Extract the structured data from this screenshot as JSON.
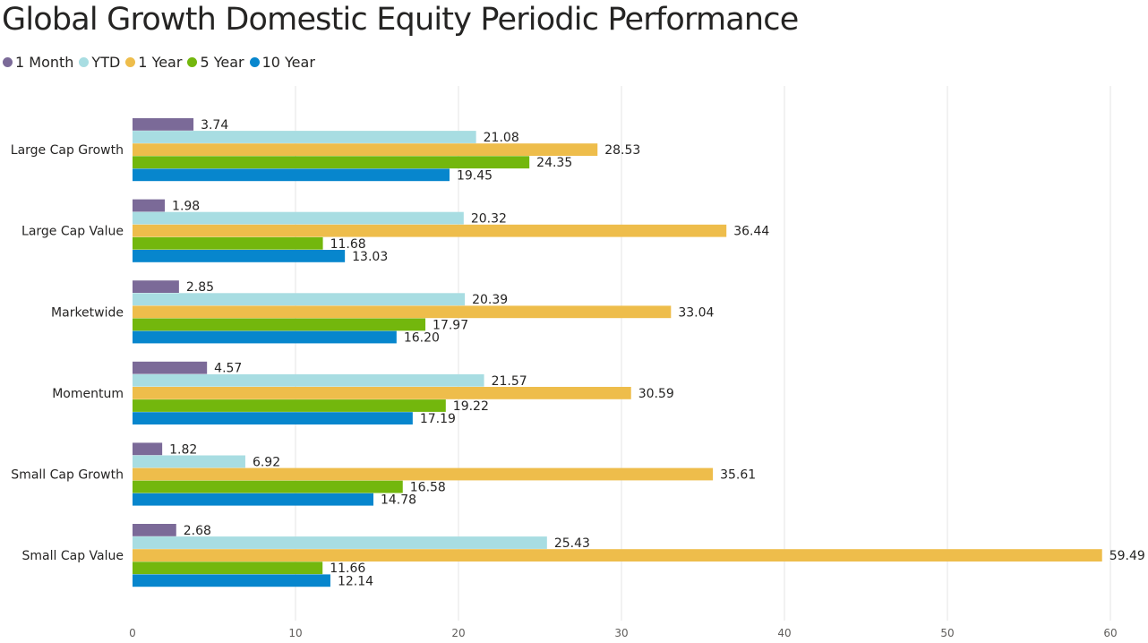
{
  "colors": {
    "1 Month": "#7b6a98",
    "YTD": "#a8dde2",
    "1 Year": "#eebd4b",
    "5 Year": "#73b70d",
    "10 Year": "#0786cd",
    "grid": "#e9e9e9",
    "text": "#252423"
  },
  "chart_data": {
    "type": "bar",
    "orientation": "horizontal",
    "title": "Global Growth Domestic Equity Periodic Performance",
    "categories": [
      "Large Cap Growth",
      "Large Cap Value",
      "Marketwide",
      "Momentum",
      "Small Cap Growth",
      "Small Cap Value"
    ],
    "series": [
      {
        "name": "1 Month",
        "values": [
          3.74,
          1.98,
          2.85,
          4.57,
          1.82,
          2.68
        ]
      },
      {
        "name": "YTD",
        "values": [
          21.08,
          20.32,
          20.39,
          21.57,
          6.92,
          25.43
        ]
      },
      {
        "name": "1 Year",
        "values": [
          28.53,
          36.44,
          33.04,
          30.59,
          35.61,
          59.49
        ]
      },
      {
        "name": "5 Year",
        "values": [
          24.35,
          11.68,
          17.97,
          19.22,
          16.58,
          11.66
        ]
      },
      {
        "name": "10 Year",
        "values": [
          19.45,
          13.03,
          16.2,
          17.19,
          14.78,
          12.14
        ]
      }
    ],
    "xlim": [
      0,
      60
    ],
    "xticks": [
      "0",
      "10",
      "20",
      "30",
      "40",
      "50",
      "60"
    ],
    "grid": true,
    "legend_position": "top-left",
    "data_labels": true
  }
}
